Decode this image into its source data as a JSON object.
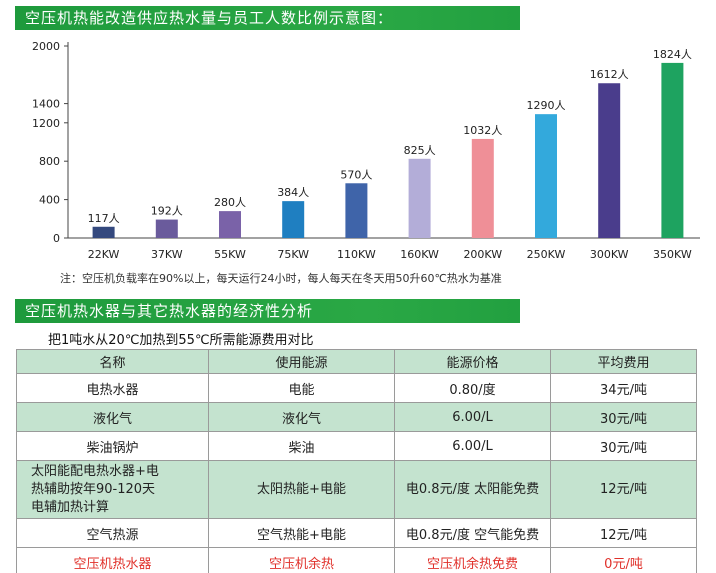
{
  "banner1": {
    "title": "空压机热能改造供应热水量与员工人数比例示意图："
  },
  "chart_data": {
    "type": "bar",
    "title": "空压机热能改造供应热水量与员工人数比例示意图：",
    "categories": [
      "22KW",
      "37KW",
      "55KW",
      "75KW",
      "110KW",
      "160KW",
      "200KW",
      "250KW",
      "300KW",
      "350KW"
    ],
    "values": [
      117,
      192,
      280,
      384,
      570,
      825,
      1032,
      1290,
      1612,
      1824
    ],
    "value_labels": [
      "117人",
      "192人",
      "280人",
      "384人",
      "570人",
      "825人",
      "1032人",
      "1290人",
      "1612人",
      "1824人"
    ],
    "bar_colors": [
      "#34497e",
      "#6a5b9c",
      "#7a62a8",
      "#1f7fc1",
      "#3f64a9",
      "#b3add8",
      "#ef8f97",
      "#33a9dc",
      "#4a3d8c",
      "#1ea360"
    ],
    "yticks": [
      0,
      400,
      800,
      1200,
      1400,
      2000
    ],
    "ylim": [
      0,
      2000
    ],
    "xlabel": "",
    "ylabel": "",
    "grid": false
  },
  "note": "注：空压机负载率在90%以上，每天运行24小时，每人每天在冬天用50升60℃热水为基准",
  "banner2": {
    "title": "空压机热水器与其它热水器的经济性分析"
  },
  "subtitle": "把1吨水从20℃加热到55℃所需能源费用对比",
  "table": {
    "headers": [
      "名称",
      "使用能源",
      "能源价格",
      "平均费用"
    ],
    "rows": [
      [
        "电热水器",
        "电能",
        "0.80/度",
        "34元/吨"
      ],
      [
        "液化气",
        "液化气",
        "6.00/L",
        "30元/吨"
      ],
      [
        "柴油锅炉",
        "柴油",
        "6.00/L",
        "30元/吨"
      ],
      [
        "太阳能配电热水器+电热辅助按年90-120天电辅加热计算",
        "太阳热能+电能",
        "电0.8元/度  太阳能免费",
        "12元/吨"
      ],
      [
        "空气热源",
        "空气热能+电能",
        "电0.8元/度  空气能免费",
        "12元/吨"
      ],
      [
        "空压机热水器",
        "空压机余热",
        "空压机余热免费",
        "0元/吨"
      ]
    ],
    "row3_name_lines": [
      "太阳能配电热水器+电",
      "热辅助按年90-120天",
      "电辅加热计算"
    ]
  }
}
